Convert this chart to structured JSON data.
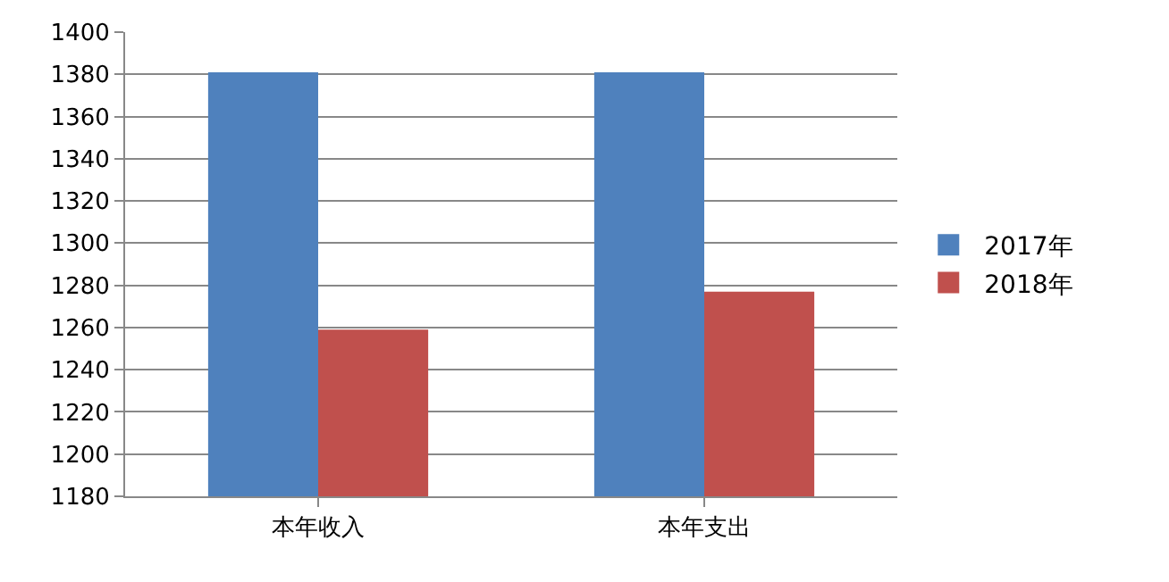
{
  "chart_data": {
    "type": "bar",
    "categories": [
      "本年收入",
      "本年支出"
    ],
    "series": [
      {
        "name": "2017年",
        "color": "#4f81bd",
        "values": [
          1381,
          1381
        ]
      },
      {
        "name": "2018年",
        "color": "#c0504d",
        "values": [
          1259,
          1277
        ]
      }
    ],
    "ylim": [
      1180,
      1400
    ],
    "yticks": [
      1180,
      1200,
      1220,
      1240,
      1260,
      1280,
      1300,
      1320,
      1340,
      1360,
      1380,
      1400
    ],
    "grid": "y",
    "legend": "right"
  }
}
